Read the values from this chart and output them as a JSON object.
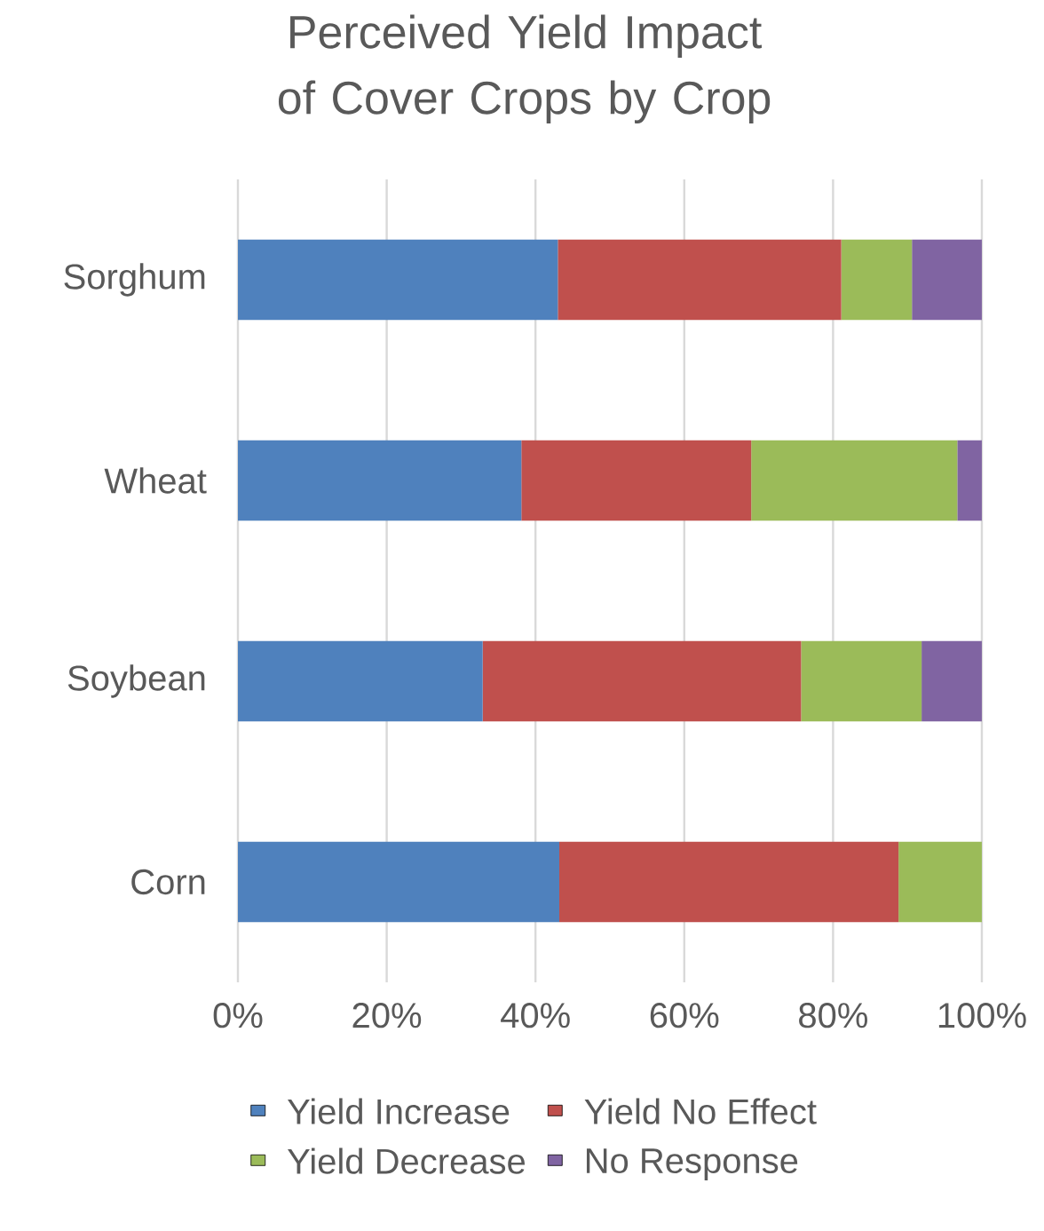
{
  "chart_data": {
    "type": "bar",
    "orientation": "horizontal",
    "stacked": true,
    "title": "Perceived Yield Impact of Cover Crops by Crop",
    "categories": [
      "Sorghum",
      "Wheat",
      "Soybean",
      "Corn"
    ],
    "series": [
      {
        "name": "Yield Increase",
        "color": "#4f81bd",
        "values": [
          43.0,
          38.1,
          32.9,
          43.2
        ]
      },
      {
        "name": "Yield No Effect",
        "color": "#c0504d",
        "values": [
          38.1,
          30.9,
          42.8,
          45.6
        ]
      },
      {
        "name": "Yield Decrease",
        "color": "#9bbb59",
        "values": [
          9.5,
          27.7,
          16.2,
          11.2
        ]
      },
      {
        "name": "No Response",
        "color": "#8064a2",
        "values": [
          9.4,
          3.3,
          8.1,
          0
        ]
      }
    ],
    "xlim": [
      0,
      100
    ],
    "xticks": [
      {
        "value": 0,
        "label": "0%"
      },
      {
        "value": 20,
        "label": "20%"
      },
      {
        "value": 40,
        "label": "40%"
      },
      {
        "value": 60,
        "label": "60%"
      },
      {
        "value": 80,
        "label": "80%"
      },
      {
        "value": 100,
        "label": "100%"
      }
    ],
    "grid": "x",
    "legend": "bottom"
  }
}
